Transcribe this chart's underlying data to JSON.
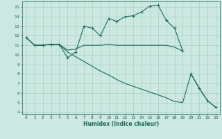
{
  "xlabel": "Humidex (Indice chaleur)",
  "bg_color": "#cce8e0",
  "line_color": "#1a6b5a",
  "grid_color": "#99ccbb",
  "xlim": [
    -0.5,
    23.5
  ],
  "ylim": [
    3.8,
    15.6
  ],
  "yticks": [
    4,
    5,
    6,
    7,
    8,
    9,
    10,
    11,
    12,
    13,
    14,
    15
  ],
  "xticks": [
    0,
    1,
    2,
    3,
    4,
    5,
    6,
    7,
    8,
    9,
    10,
    11,
    12,
    13,
    14,
    15,
    16,
    17,
    18,
    19,
    20,
    21,
    22,
    23
  ],
  "line1_x": [
    0,
    1,
    2,
    3,
    4,
    5,
    6,
    7,
    8,
    9,
    10,
    11,
    12,
    13,
    14,
    15,
    16,
    17,
    18,
    19
  ],
  "line1_y": [
    11.8,
    11.0,
    11.0,
    11.1,
    11.1,
    9.7,
    10.3,
    13.0,
    12.8,
    12.0,
    13.8,
    13.5,
    14.0,
    14.1,
    14.5,
    15.1,
    15.2,
    13.6,
    12.8,
    10.4
  ],
  "line2_x": [
    0,
    1,
    2,
    3,
    4,
    5,
    6,
    7,
    8,
    9,
    10,
    11,
    12,
    13,
    14,
    15,
    16,
    17,
    18,
    19
  ],
  "line2_y": [
    11.8,
    11.0,
    11.0,
    11.1,
    11.1,
    10.5,
    10.6,
    11.0,
    11.0,
    11.0,
    11.1,
    11.0,
    11.0,
    11.0,
    11.0,
    11.0,
    11.0,
    11.0,
    10.8,
    10.4
  ],
  "line3_x": [
    0,
    1,
    2,
    3,
    4,
    5,
    6,
    7,
    8,
    9,
    10,
    11,
    12,
    13,
    14,
    15,
    16,
    17,
    18,
    19,
    20,
    21,
    22,
    23
  ],
  "line3_y": [
    11.8,
    11.0,
    11.0,
    11.1,
    11.1,
    10.3,
    9.8,
    9.3,
    8.8,
    8.3,
    7.9,
    7.4,
    7.0,
    6.7,
    6.4,
    6.1,
    5.8,
    5.5,
    5.1,
    5.0,
    8.0,
    6.5,
    5.2,
    4.5
  ]
}
